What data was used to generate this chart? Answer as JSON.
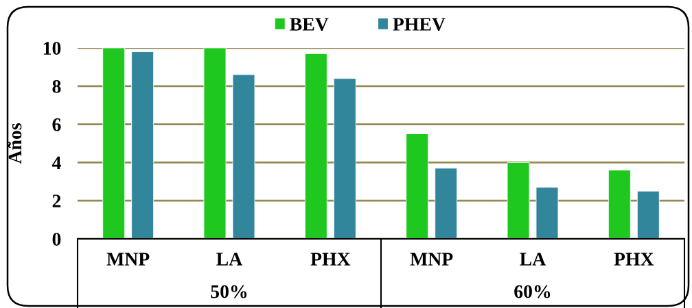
{
  "chart_data": {
    "type": "bar",
    "categories": [
      "MNP",
      "LA",
      "PHX",
      "MNP",
      "LA",
      "PHX"
    ],
    "series": [
      {
        "name": "BEV",
        "color": "#1ec81e",
        "values": [
          10,
          10,
          9.7,
          5.5,
          4,
          3.6
        ]
      },
      {
        "name": "PHEV",
        "color": "#32869c",
        "values": [
          9.8,
          8.6,
          8.4,
          3.7,
          2.7,
          2.5
        ]
      }
    ],
    "ylabel": "Años",
    "ylim": [
      0,
      10
    ],
    "yticks": [
      0,
      2,
      4,
      6,
      8,
      10
    ],
    "grid": "y",
    "legend": "top",
    "annotations": [
      "50%",
      "60%"
    ]
  }
}
